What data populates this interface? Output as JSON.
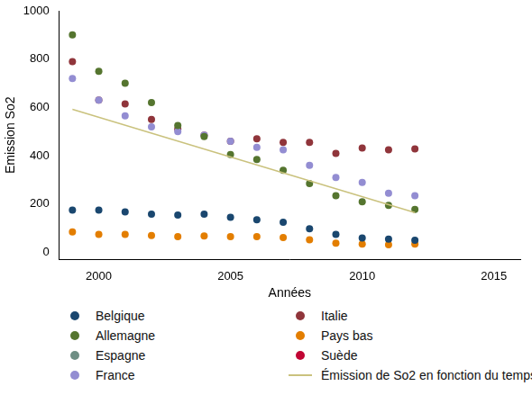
{
  "chart_data": {
    "type": "scatter",
    "x_label": "Années",
    "y_label": "Emission So2",
    "x": [
      1999,
      2000,
      2001,
      2002,
      2003,
      2004,
      2005,
      2006,
      2007,
      2008,
      2009,
      2010,
      2011,
      2012
    ],
    "xlim": [
      1998.5,
      2016
    ],
    "xticks": [
      2000,
      2005,
      2010,
      2015
    ],
    "ylim": [
      -30,
      1000
    ],
    "yticks": [
      0,
      200,
      400,
      600,
      800,
      1000
    ],
    "grid": false,
    "legend": "bottom",
    "series": [
      {
        "name": "Belgique",
        "color": "#1a476f",
        "marker": "circle",
        "values": [
          175,
          175,
          168,
          158,
          155,
          158,
          145,
          135,
          125,
          98,
          75,
          60,
          55,
          50
        ]
      },
      {
        "name": "Allemagne",
        "color": "#55752f",
        "marker": "circle",
        "values": [
          900,
          750,
          700,
          620,
          525,
          480,
          405,
          385,
          340,
          285,
          235,
          210,
          195,
          178
        ]
      },
      {
        "name": "Espagne",
        "color": "#6e8e84",
        "marker": "circle",
        "values": [
          null,
          null,
          null,
          null,
          null,
          null,
          null,
          null,
          null,
          null,
          null,
          null,
          null,
          null
        ]
      },
      {
        "name": "France",
        "color": "#938dd2",
        "marker": "circle",
        "values": [
          720,
          630,
          565,
          520,
          500,
          485,
          460,
          435,
          425,
          360,
          310,
          290,
          245,
          235
        ]
      },
      {
        "name": "Italie",
        "color": "#90353b",
        "marker": "circle",
        "values": [
          790,
          630,
          615,
          550,
          510,
          485,
          460,
          470,
          455,
          455,
          410,
          432,
          425,
          428
        ]
      },
      {
        "name": "Pays bas",
        "color": "#e37e00",
        "marker": "circle",
        "values": [
          85,
          75,
          75,
          70,
          65,
          68,
          65,
          65,
          62,
          52,
          38,
          35,
          32,
          35
        ]
      },
      {
        "name": "Suède",
        "color": "#c10534",
        "marker": "circle",
        "values": [
          null,
          null,
          null,
          null,
          null,
          null,
          null,
          null,
          null,
          null,
          null,
          null,
          null,
          null
        ]
      },
      {
        "name": "Émission de So2 en fonction du temps",
        "color": "#cac27e",
        "type": "line",
        "line_style": "solid",
        "values": [
          592,
          null,
          null,
          null,
          null,
          null,
          null,
          null,
          null,
          null,
          null,
          null,
          null,
          165
        ]
      }
    ]
  }
}
